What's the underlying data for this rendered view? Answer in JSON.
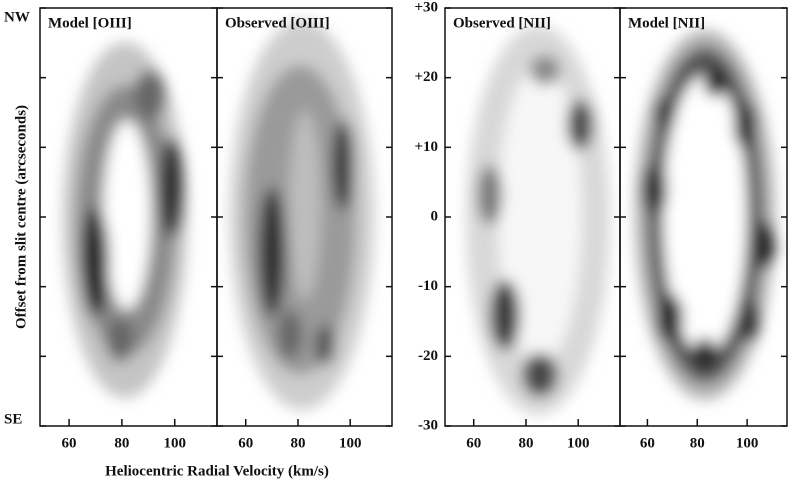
{
  "chart_data": {
    "type": "position-velocity",
    "xlabel": "Heliocentric Radial Velocity (km/s)",
    "ylabel": "Offset from slit centre (arcseconds)",
    "top_label": "NW",
    "bottom_label": "SE",
    "panels": [
      "Model [OIII]",
      "Observed [OIII]",
      "Observed [NII]",
      "Model [NII]"
    ],
    "xlim": [
      49,
      116
    ],
    "xticks": [
      60,
      80,
      100
    ],
    "ylim": [
      -30,
      30
    ],
    "yticks": [
      {
        "value": 30,
        "label": "+30"
      },
      {
        "value": 20,
        "label": "+20"
      },
      {
        "value": 10,
        "label": "+10"
      },
      0,
      -10,
      -20,
      -30
    ]
  }
}
